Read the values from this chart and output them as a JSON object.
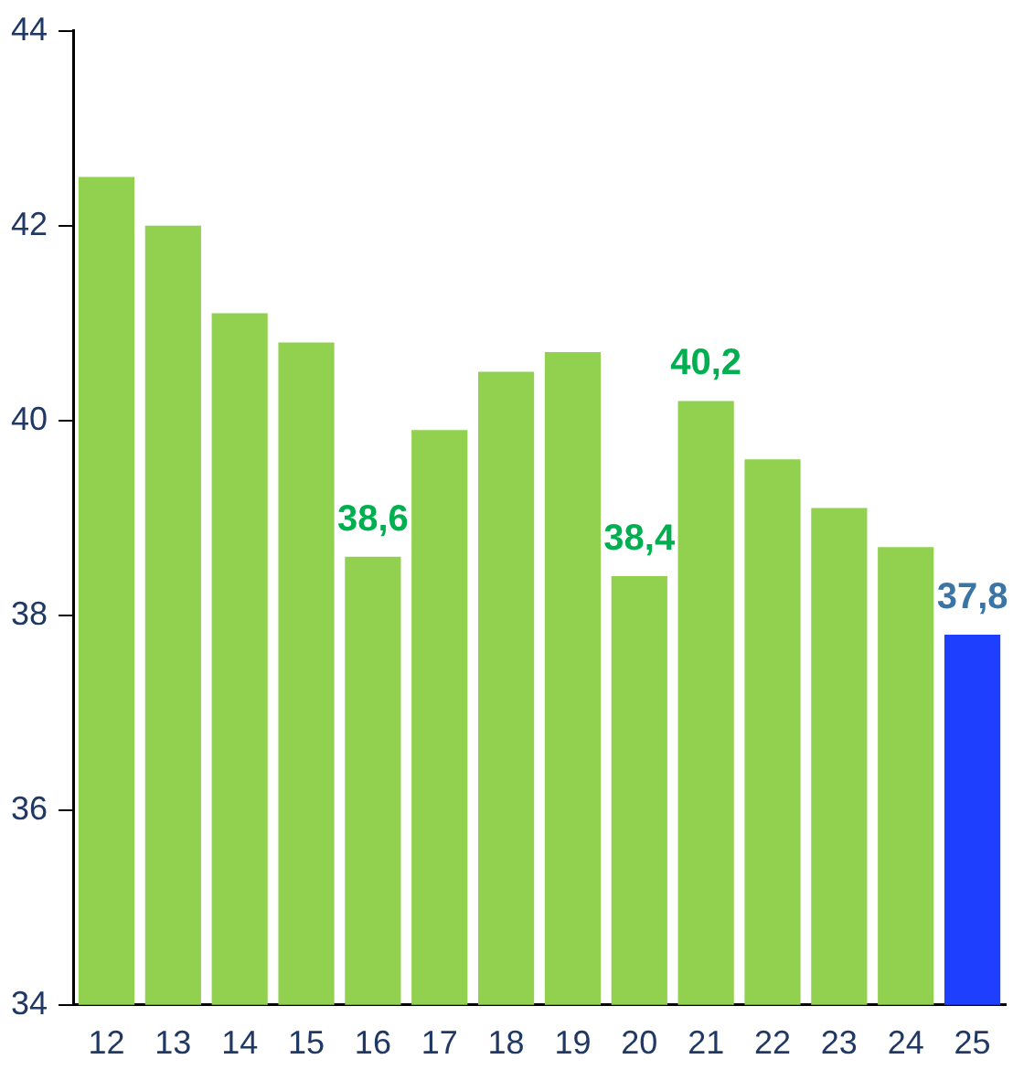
{
  "chart_data": {
    "type": "bar",
    "categories": [
      "12",
      "13",
      "14",
      "15",
      "16",
      "17",
      "18",
      "19",
      "20",
      "21",
      "22",
      "23",
      "24",
      "25"
    ],
    "values": [
      42.5,
      42.0,
      41.1,
      40.8,
      38.6,
      39.9,
      40.5,
      40.7,
      38.4,
      40.2,
      39.6,
      39.1,
      38.7,
      37.8
    ],
    "colors": [
      "#92d050",
      "#92d050",
      "#92d050",
      "#92d050",
      "#92d050",
      "#92d050",
      "#92d050",
      "#92d050",
      "#92d050",
      "#92d050",
      "#92d050",
      "#92d050",
      "#92d050",
      "#1f3fff"
    ],
    "value_labels": [
      null,
      null,
      null,
      null,
      "38,6",
      null,
      null,
      null,
      "38,4",
      "40,2",
      null,
      null,
      null,
      "37,8"
    ],
    "ylim": [
      34,
      44
    ],
    "yticks": [
      34,
      36,
      38,
      40,
      42,
      44
    ],
    "grid": false,
    "legend": false
  }
}
